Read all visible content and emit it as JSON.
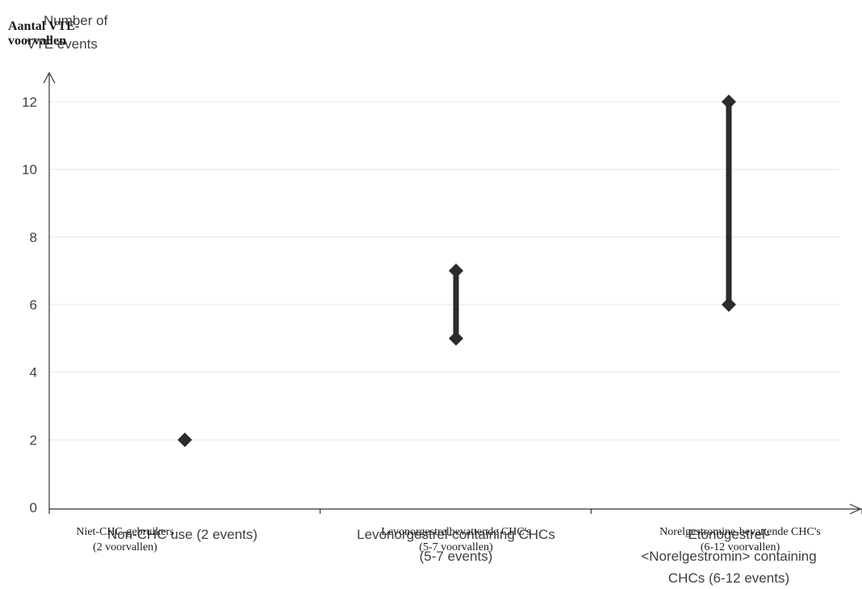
{
  "chart_data": {
    "type": "range",
    "ylabel_en_lines": [
      "Number of",
      "VTE events"
    ],
    "ylabel_nl_lines": [
      "Aantal VTE-",
      "voorvallen"
    ],
    "ylim": [
      0,
      12
    ],
    "yticks": [
      "0",
      "2",
      "4",
      "6",
      "8",
      "10",
      "12"
    ],
    "grid": true,
    "categories": [
      {
        "en_lines": [
          "Non-CHC use (2 events)"
        ],
        "nl_lines": [
          "Niet-CHC-gebruikers",
          "(2 voorvallen)"
        ],
        "min": 2,
        "max": 2
      },
      {
        "en_lines": [
          "Levonorgestrel-containing CHCs",
          "(5-7 events)"
        ],
        "nl_lines": [
          "Levonorgestrelbevattende  CHC's",
          "(5-7 voorvallen)"
        ],
        "min": 5,
        "max": 7
      },
      {
        "en_lines": [
          "Etonogestrel-",
          "<Norelgestromin> containing",
          "CHCs (6-12 events)"
        ],
        "nl_lines": [
          "Norelgestromine-bevattende  CHC's",
          "(6-12 voorvallen)"
        ],
        "min": 6,
        "max": 12
      }
    ]
  }
}
